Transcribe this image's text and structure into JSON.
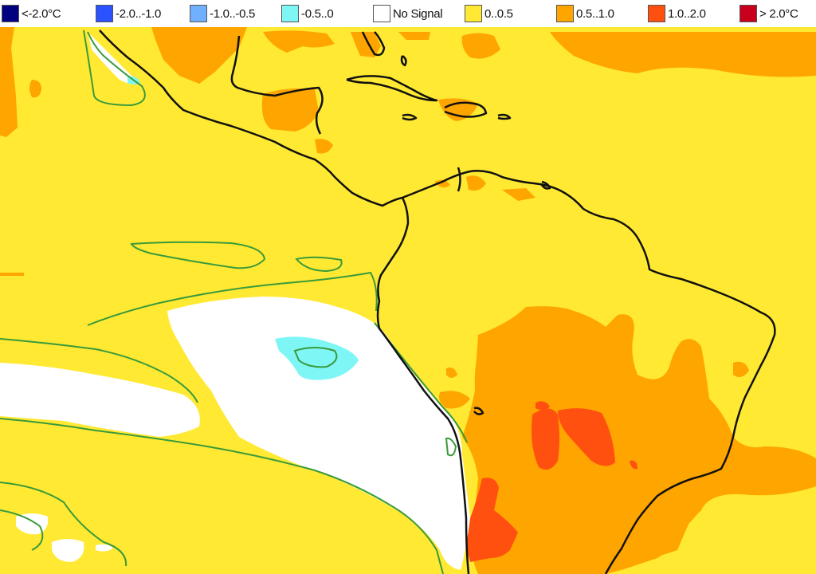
{
  "legend": {
    "items": [
      {
        "label": "<-2.0°C",
        "color": "#000080"
      },
      {
        "label": "-2.0..-1.0",
        "color": "#2a52ff"
      },
      {
        "label": "-1.0..-0.5",
        "color": "#6fb0ff"
      },
      {
        "label": "-0.5..0",
        "color": "#7ff6f6"
      },
      {
        "label": "No Signal",
        "color": "#ffffff"
      },
      {
        "label": "0..0.5",
        "color": "#ffe933"
      },
      {
        "label": "0.5..1.0",
        "color": "#ffa500"
      },
      {
        "label": "1.0..2.0",
        "color": "#ff5010"
      },
      {
        "label": "> 2.0°C",
        "color": "#c8001e"
      }
    ]
  },
  "map": {
    "region": "Central and South America",
    "colors": {
      "background": "#ffe933",
      "warm": "#ffa500",
      "hot": "#ff5010",
      "no_signal": "#ffffff",
      "cool": "#7ff6f6",
      "coastline": "#111111",
      "contour": "#3a9a3a"
    }
  }
}
